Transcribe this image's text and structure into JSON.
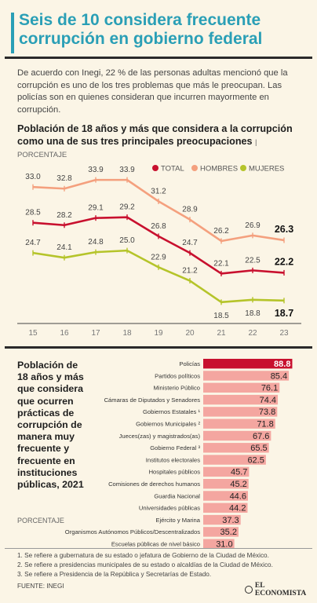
{
  "header": {
    "title": "Seis de 10 considera frecuente corrupción en gobierno federal"
  },
  "intro": "De acuerdo con Inegi, 22 % de las personas adultas mencionó que la corrupción es uno de los tres problemas que más le preocupan. Las policías son en quienes consideran que incurren mayormente en corrupción.",
  "section1": {
    "title": "Población de 18 años y más que considera a la corrupción como una de sus tres principales preocupaciones",
    "unit": "| PORCENTAJE"
  },
  "section2": {
    "title": "Población de 18 años y más que considera que ocurren prácticas de corrupción de manera muy frecuente y frecuente en instituciones públicas, 2021",
    "unit": "PORCENTAJE"
  },
  "notes": [
    "1. Se refiere a gubernatura de su estado o jefatura de Gobierno de la Ciudad de México.",
    "2. Se refiere a presidencias municipales de su estado o alcaldías de la Ciudad de México.",
    "3. Se refiere a Presidencia de la República y Secretarías de Estado."
  ],
  "source": "FUENTE: INEGI",
  "brand": "EL ECONOMISTA",
  "colors": {
    "accent": "#2a9fb6",
    "total": "#c8102e",
    "hombres": "#f4a07e",
    "mujeres": "#b5c42a",
    "bar": "#f4a6a0",
    "bar_highlight": "#c8102e"
  },
  "chart_data": [
    {
      "type": "line",
      "title": "Población de 18 años y más que considera a la corrupción como una de sus tres principales preocupaciones",
      "ylabel": "PORCENTAJE",
      "x": [
        "15",
        "16",
        "17",
        "18",
        "19",
        "20",
        "21",
        "22",
        "23"
      ],
      "series": [
        {
          "name": "TOTAL",
          "color": "#c8102e",
          "values": [
            28.5,
            28.2,
            29.1,
            29.2,
            26.8,
            24.7,
            22.1,
            22.5,
            22.2
          ]
        },
        {
          "name": "HOMBRES",
          "color": "#f4a07e",
          "values": [
            33.0,
            32.8,
            33.9,
            33.9,
            31.2,
            28.9,
            26.2,
            26.9,
            26.3
          ]
        },
        {
          "name": "MUJERES",
          "color": "#b5c42a",
          "values": [
            24.7,
            24.1,
            24.8,
            25.0,
            22.9,
            21.2,
            18.5,
            18.8,
            18.7
          ]
        }
      ],
      "labels": [
        [
          "28.5",
          "28.2",
          "29.1",
          "29.2",
          "26.8",
          "24.7",
          "22.1",
          "22.5",
          "22.2"
        ],
        [
          "33.0",
          "32.8",
          "33.9",
          "33.9",
          "31.2",
          "28.9",
          "26.2",
          "26.9",
          "26.3"
        ],
        [
          "24.7",
          "24.1",
          "24.8",
          "25.0",
          "22.9",
          "21.2",
          "18.5",
          "18.8",
          "18.7"
        ]
      ],
      "legend": "top-right"
    },
    {
      "type": "bar",
      "orientation": "horizontal",
      "title": "Población de 18 años y más que considera que ocurren prácticas de corrupción de manera muy frecuente y frecuente en instituciones públicas, 2021",
      "unit": "PORCENTAJE",
      "categories": [
        "Policías",
        "Partidos políticos",
        "Ministerio Público",
        "Cámaras de Diputados y Senadores",
        "Gobiernos Estatales ¹",
        "Gobiernos Municipales ²",
        "Jueces(zas) y magistrados(as)",
        "Gobierno Federal ³",
        "Institutos electorales",
        "Hospitales públicos",
        "Comisiones de derechos humanos",
        "Guardia Nacional",
        "Universidades públicas",
        "Ejército y Marina",
        "Organismos Autónomos Públicos/Descentralizados",
        "Escuelas públicas de nivel básico"
      ],
      "values": [
        88.8,
        85.4,
        76.1,
        74.4,
        73.8,
        71.8,
        67.6,
        65.5,
        62.5,
        45.7,
        45.2,
        44.6,
        44.2,
        37.3,
        35.2,
        31.0
      ],
      "labels": [
        "88.8",
        "85.4",
        "76.1",
        "74.4",
        "73.8",
        "71.8",
        "67.6",
        "65.5",
        "62.5",
        "45.7",
        "45.2",
        "44.6",
        "44.2",
        "37.3",
        "35.2",
        "31.0"
      ],
      "highlight_index": 0
    }
  ]
}
